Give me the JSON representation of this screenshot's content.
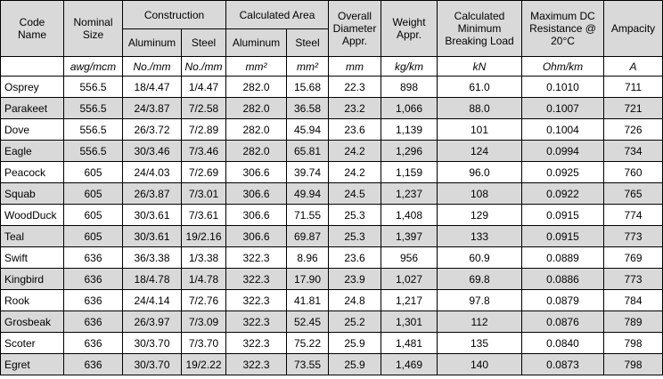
{
  "header": {
    "code_name": "Code\nName",
    "nominal_size": "Nominal\nSize",
    "construction": "Construction",
    "calculated_area": "Calculated Area",
    "overall_diameter": "Overall\nDiameter\nAppr.",
    "weight": "Weight\nAppr.",
    "breaking_load": "Calculated\nMinimum\nBreaking Load",
    "resistance": "Maximum DC\nResistance @\n20°C",
    "ampacity": "Ampacity",
    "subheaders": [
      "Aluminum",
      "Steel",
      "Aluminum",
      "Steel"
    ]
  },
  "units": [
    "awg/mcm",
    "No./mm",
    "No./mm",
    "mm²",
    "mm²",
    "mm",
    "kg/km",
    "kN",
    "Ohm/km",
    "A"
  ],
  "rows": [
    [
      "Osprey",
      "556.5",
      "18/4.47",
      "1/4.47",
      "282.0",
      "15.68",
      "22.3",
      "898",
      "61.0",
      "0.1010",
      "711"
    ],
    [
      "Parakeet",
      "556.5",
      "24/3.87",
      "7/2.58",
      "282.0",
      "36.58",
      "23.2",
      "1,066",
      "88.0",
      "0.1007",
      "721"
    ],
    [
      "Dove",
      "556.5",
      "26/3.72",
      "7/2.89",
      "282.0",
      "45.94",
      "23.6",
      "1,139",
      "101",
      "0.1004",
      "726"
    ],
    [
      "Eagle",
      "556.5",
      "30/3.46",
      "7/3.46",
      "282.0",
      "65.81",
      "24.2",
      "1,296",
      "124",
      "0.0994",
      "734"
    ],
    [
      "Peacock",
      "605",
      "24/4.03",
      "7/2.69",
      "306.6",
      "39.74",
      "24.2",
      "1,159",
      "96.0",
      "0.0925",
      "760"
    ],
    [
      "Squab",
      "605",
      "26/3.87",
      "7/3.01",
      "306.6",
      "49.94",
      "24.5",
      "1,237",
      "108",
      "0.0922",
      "765"
    ],
    [
      "WoodDuck",
      "605",
      "30/3.61",
      "7/3.61",
      "306.6",
      "71.55",
      "25.3",
      "1,408",
      "129",
      "0.0915",
      "774"
    ],
    [
      "Teal",
      "605",
      "30/3.61",
      "19/2.16",
      "306.6",
      "69.87",
      "25.3",
      "1,397",
      "133",
      "0.0915",
      "773"
    ],
    [
      "Swift",
      "636",
      "36/3.38",
      "1/3.38",
      "322.3",
      "8.96",
      "23.6",
      "956",
      "60.9",
      "0.0889",
      "769"
    ],
    [
      "Kingbird",
      "636",
      "18/4.78",
      "1/4.78",
      "322.3",
      "17.90",
      "23.9",
      "1,027",
      "69.8",
      "0.0886",
      "773"
    ],
    [
      "Rook",
      "636",
      "24/4.14",
      "7/2.76",
      "322.3",
      "41.81",
      "24.8",
      "1,217",
      "97.8",
      "0.0879",
      "784"
    ],
    [
      "Grosbeak",
      "636",
      "26/3.97",
      "7/3.09",
      "322.3",
      "52.45",
      "25.2",
      "1,301",
      "112",
      "0.0876",
      "789"
    ],
    [
      "Scoter",
      "636",
      "30/3.70",
      "7/3.70",
      "322.3",
      "75.22",
      "25.9",
      "1,481",
      "135",
      "0.0840",
      "798"
    ],
    [
      "Egret",
      "636",
      "30/3.70",
      "19/2.22",
      "322.3",
      "73.55",
      "25.9",
      "1,469",
      "140",
      "0.0873",
      "798"
    ]
  ]
}
